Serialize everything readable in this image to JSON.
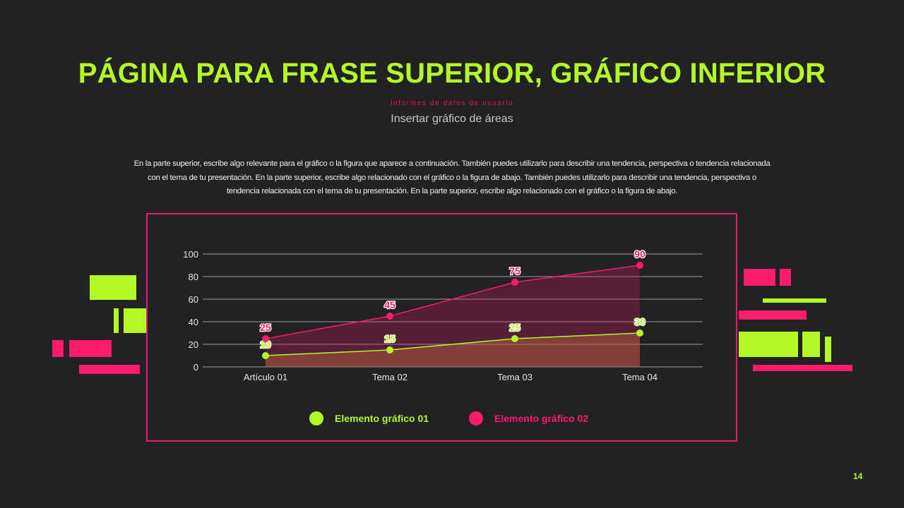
{
  "title": "PÁGINA PARA FRASE SUPERIOR, GRÁFICO INFERIOR",
  "kicker": "Informes de datos de usuario",
  "subtitle": "Insertar gráfico de áreas",
  "body": "En la parte superior, escribe algo relevante para el gráfico o la figura que aparece a continuación. También puedes utilizarlo para describir una tendencia, perspectiva o tendencia relacionada con el tema de tu presentación. En la parte superior, escribe algo relacionado con el gráfico o la figura de abajo. También puedes utilizarlo para describir una tendencia, perspectiva o tendencia relacionada con el tema de tu presentación. En la parte superior, escribe algo relacionado con el gráfico o la figura de abajo.",
  "page_number": "14",
  "colors": {
    "accent_green": "#b3f928",
    "accent_pink": "#fe1a6c",
    "background": "#222123"
  },
  "chart_data": {
    "type": "area",
    "categories": [
      "Artículo 01",
      "Tema 02",
      "Tema 03",
      "Tema 04"
    ],
    "series": [
      {
        "name": "Elemento gráfico 01",
        "values": [
          10,
          15,
          25,
          30
        ],
        "color": "#b3f928"
      },
      {
        "name": "Elemento gráfico 02",
        "values": [
          25,
          45,
          75,
          90
        ],
        "color": "#fe1a6c"
      }
    ],
    "ylim": [
      0,
      100
    ],
    "yticks": [
      "0",
      "20",
      "40",
      "60",
      "80",
      "100"
    ],
    "grid": true,
    "data_labels": true,
    "legend": "bottom"
  }
}
